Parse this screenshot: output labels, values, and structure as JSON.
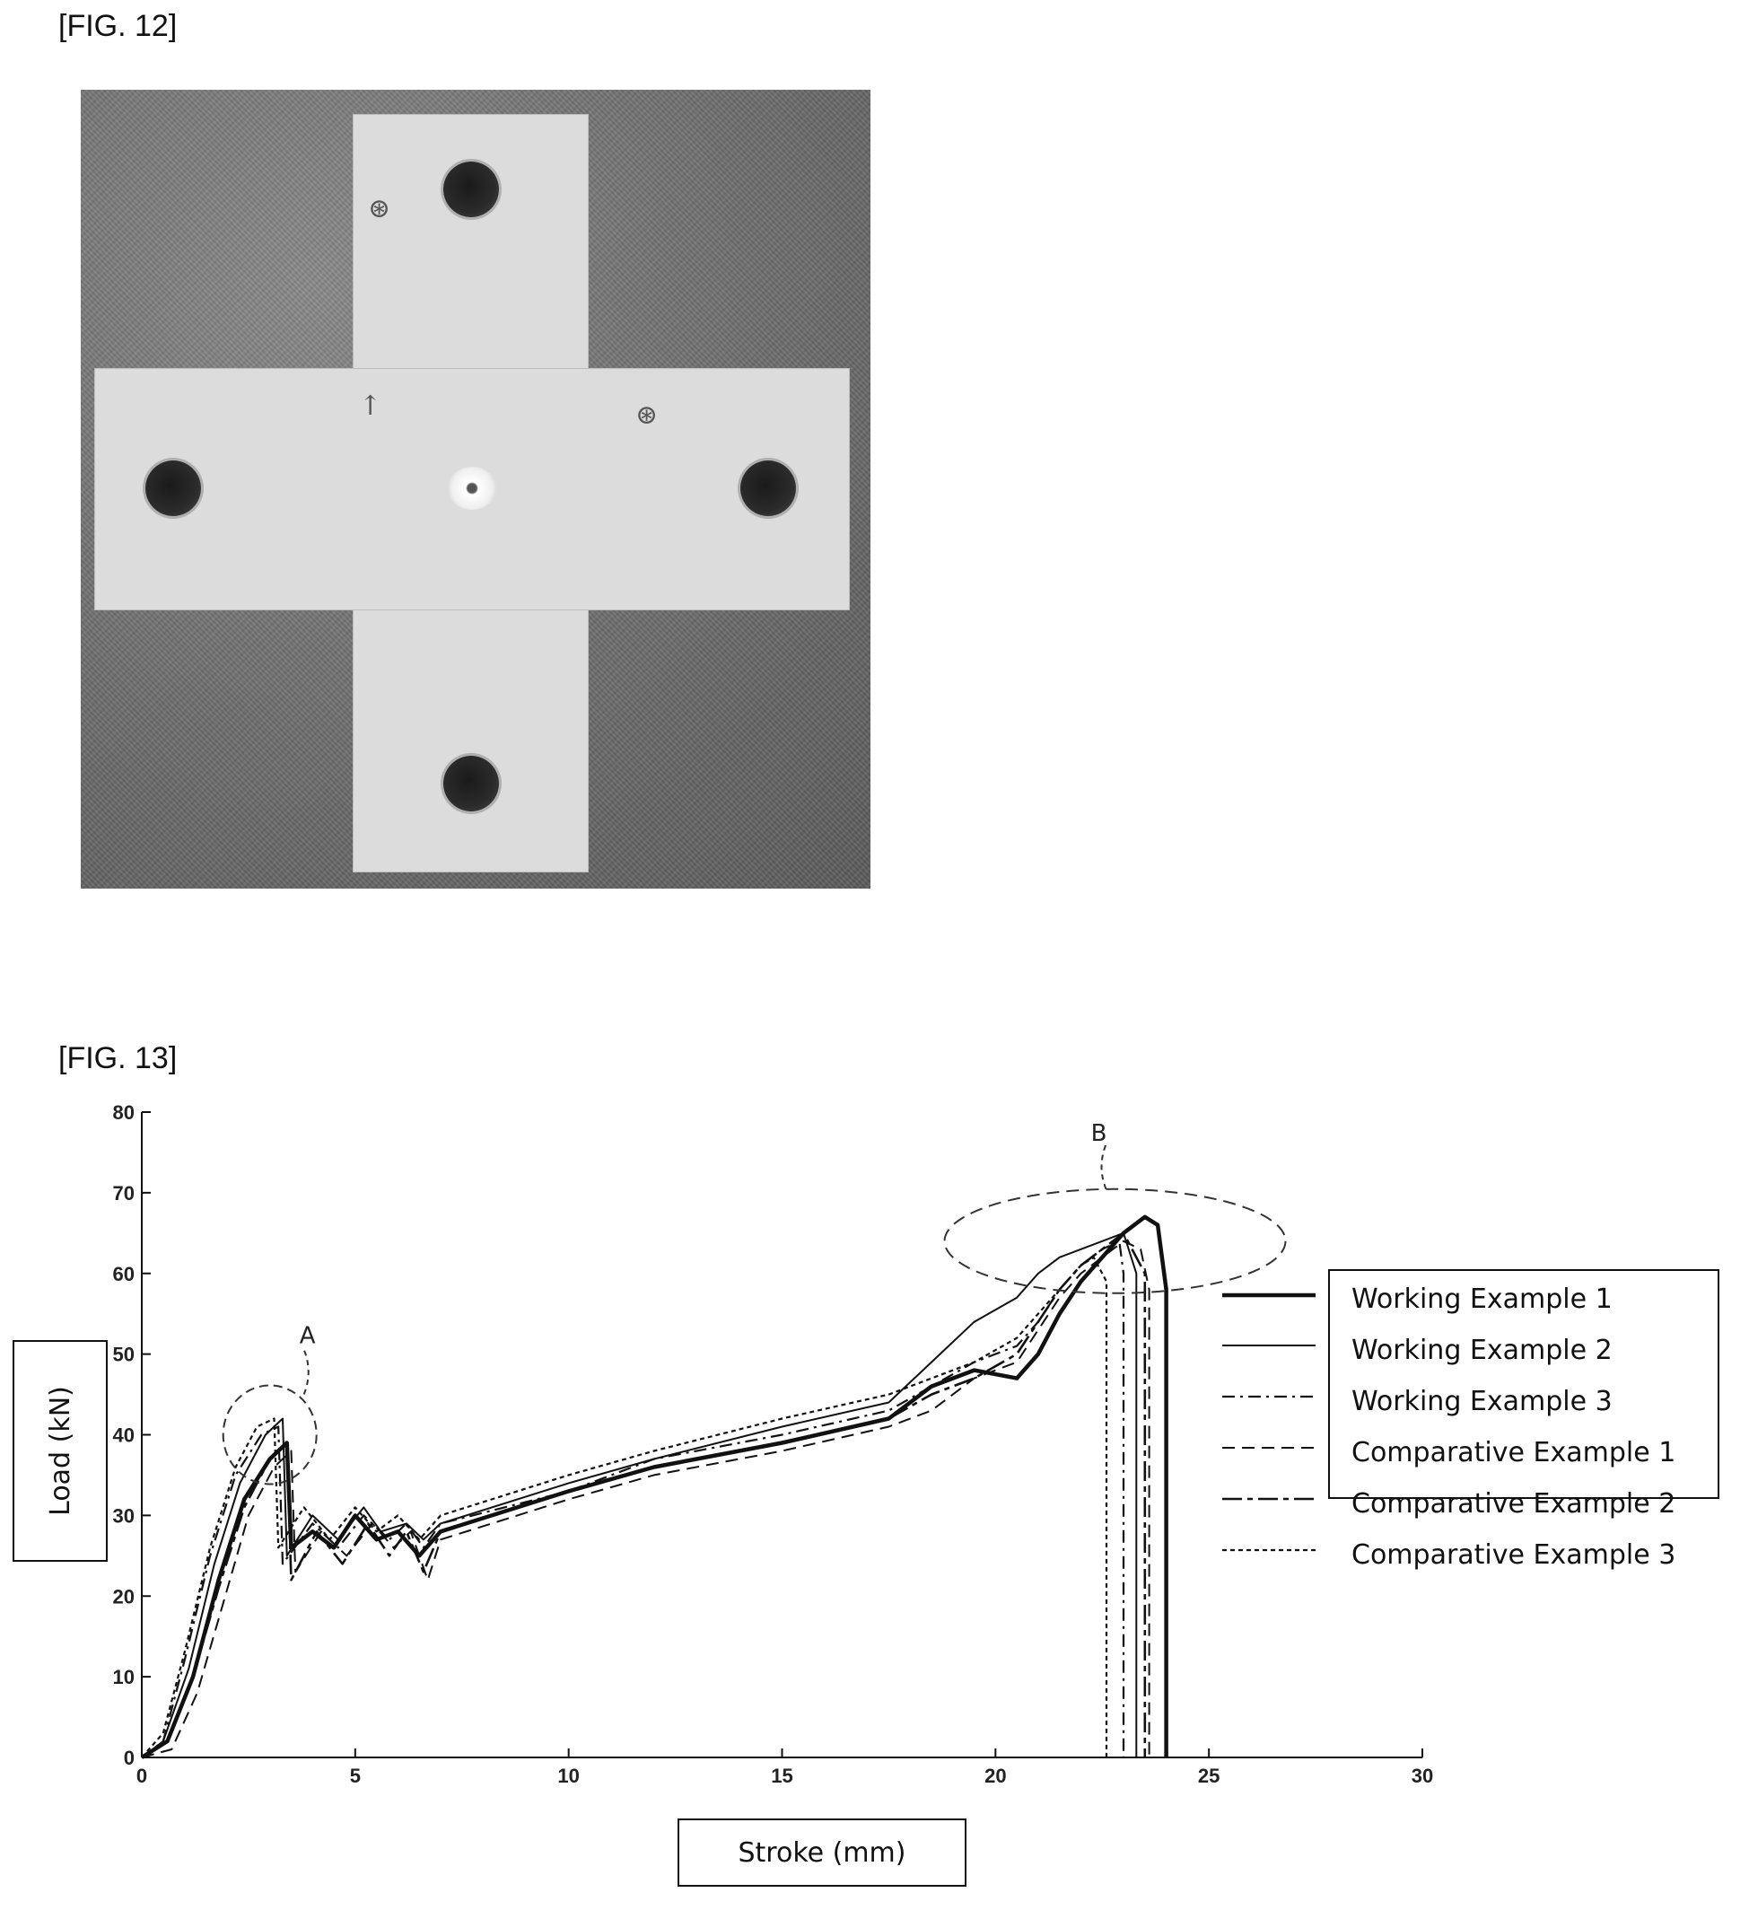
{
  "fig12": {
    "label": "[FIG. 12]"
  },
  "fig13": {
    "label": "[FIG. 13]"
  },
  "chart_data": {
    "type": "line",
    "xlabel": "Stroke (mm)",
    "ylabel": "Load (kN)",
    "xlim": [
      0,
      30
    ],
    "ylim": [
      0,
      80
    ],
    "x_ticks": [
      "0",
      "5",
      "10",
      "15",
      "20",
      "25",
      "30"
    ],
    "y_ticks": [
      "0",
      "10",
      "20",
      "30",
      "40",
      "50",
      "60",
      "70",
      "80"
    ],
    "legend_position": "right",
    "annotations": [
      {
        "label": "A",
        "x": 3.0,
        "y": 40
      },
      {
        "label": "B",
        "x": 22.8,
        "y": 64
      }
    ],
    "series": [
      {
        "name": "Working Example 1",
        "style": "solid-thick",
        "x": [
          0,
          0.6,
          1.2,
          1.8,
          2.4,
          3.0,
          3.4,
          3.5,
          4.0,
          4.5,
          5.0,
          5.5,
          6.0,
          6.5,
          7.0,
          10,
          12,
          15,
          17.5,
          18.5,
          19.5,
          20.5,
          21.0,
          21.5,
          22.0,
          22.5,
          23.0,
          23.5,
          23.8,
          24.0,
          24.0
        ],
        "y": [
          0,
          2,
          10,
          22,
          32,
          37,
          39,
          26,
          28,
          26,
          30,
          27,
          28,
          25,
          28,
          33,
          36,
          39,
          42,
          46,
          48,
          47,
          50,
          55,
          59,
          62,
          65,
          67,
          66,
          58,
          0
        ]
      },
      {
        "name": "Working Example 2",
        "style": "solid-thin",
        "x": [
          0,
          0.5,
          1.1,
          1.7,
          2.3,
          2.9,
          3.3,
          3.4,
          4.0,
          4.6,
          5.2,
          5.6,
          6.2,
          6.6,
          7.0,
          10,
          12,
          15,
          17.5,
          18.5,
          19.5,
          20.5,
          21.0,
          21.5,
          22.0,
          22.5,
          23.0,
          23.3,
          23.3
        ],
        "y": [
          0,
          2,
          11,
          24,
          34,
          40,
          42,
          25,
          30,
          27,
          31,
          28,
          29,
          27,
          29,
          34,
          37,
          41,
          44,
          49,
          54,
          57,
          60,
          62,
          63,
          64,
          65,
          60,
          0
        ]
      },
      {
        "name": "Working Example 3",
        "style": "dash-dot",
        "x": [
          0,
          0.5,
          1.0,
          1.6,
          2.2,
          2.8,
          3.2,
          3.3,
          4.0,
          4.6,
          5.2,
          5.8,
          6.2,
          6.6,
          7.0,
          10,
          12,
          15,
          17.5,
          18.5,
          19.5,
          20.5,
          21.0,
          21.5,
          22.0,
          22.5,
          22.9,
          23.0,
          23.0
        ],
        "y": [
          0,
          2,
          12,
          25,
          35,
          40,
          41,
          24,
          29,
          26,
          30,
          27,
          29,
          26,
          29,
          33,
          37,
          40,
          43,
          46,
          49,
          51,
          54,
          58,
          61,
          63,
          64,
          60,
          0
        ]
      },
      {
        "name": "Comparative Example 1",
        "style": "dashed",
        "x": [
          0,
          0.7,
          1.3,
          1.9,
          2.5,
          3.1,
          3.5,
          3.6,
          4.2,
          4.8,
          5.4,
          5.9,
          6.3,
          6.7,
          7.0,
          10,
          12,
          15,
          17.5,
          18.5,
          19.5,
          20.5,
          21.0,
          21.5,
          22.0,
          22.5,
          23.0,
          23.4,
          23.6,
          23.6
        ],
        "y": [
          0,
          1,
          8,
          19,
          30,
          36,
          38,
          23,
          28,
          25,
          29,
          26,
          28,
          22,
          27,
          32,
          35,
          38,
          41,
          43,
          47,
          49,
          53,
          57,
          60,
          62,
          64,
          63,
          58,
          0
        ]
      },
      {
        "name": "Comparative Example 2",
        "style": "long-dash-dot",
        "x": [
          0,
          0.6,
          1.2,
          1.8,
          2.4,
          3.0,
          3.4,
          3.5,
          4.1,
          4.7,
          5.3,
          5.8,
          6.2,
          6.6,
          7.0,
          10,
          12,
          15,
          17.5,
          18.5,
          19.5,
          20.5,
          21.0,
          21.5,
          22.0,
          22.5,
          23.0,
          23.5,
          23.5
        ],
        "y": [
          0,
          2,
          10,
          21,
          31,
          37,
          39,
          22,
          28,
          24,
          29,
          25,
          28,
          23,
          28,
          33,
          36,
          39,
          42,
          45,
          47,
          50,
          54,
          58,
          61,
          63,
          65,
          60,
          0
        ]
      },
      {
        "name": "Comparative Example 3",
        "style": "dotted",
        "x": [
          0,
          0.5,
          1.0,
          1.6,
          2.2,
          2.7,
          3.1,
          3.2,
          3.8,
          4.4,
          5.0,
          5.5,
          6.0,
          6.5,
          7.0,
          10,
          12,
          15,
          17.5,
          18.5,
          19.5,
          20.5,
          21.0,
          21.5,
          22.0,
          22.3,
          22.6,
          22.6
        ],
        "y": [
          0,
          3,
          13,
          26,
          36,
          41,
          42,
          26,
          31,
          27,
          31,
          28,
          30,
          27,
          30,
          35,
          38,
          42,
          45,
          47,
          49,
          52,
          55,
          58,
          61,
          62,
          59,
          0
        ]
      }
    ]
  }
}
